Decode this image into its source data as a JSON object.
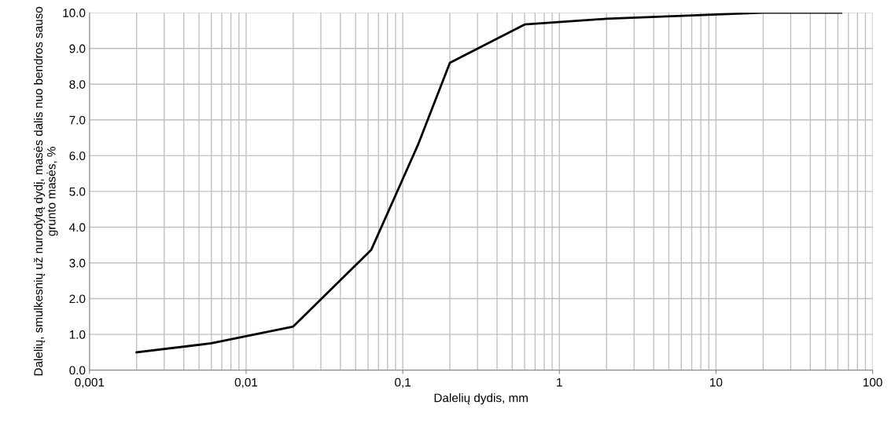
{
  "chart_data": {
    "type": "line",
    "xlabel": "Dalelių dydis, mm",
    "ylabel": "Dalelių, smulkesnių už nurodytą dydį, masės dalis nuo bendros sauso grunto masės, %",
    "log": "x",
    "grid": true,
    "marker": "none",
    "line_style": "solid",
    "x": [
      0.002,
      0.006,
      0.02,
      0.063,
      0.125,
      0.2,
      0.6,
      2,
      20,
      63
    ],
    "series": [
      {
        "color": "#000000",
        "values": [
          0.5,
          0.75,
          1.22,
          3.37,
          6.3,
          8.6,
          9.67,
          9.83,
          10.0,
          10.0
        ]
      }
    ],
    "xlim": [
      0.001,
      100
    ],
    "xticks": [
      {
        "value": 0.001,
        "label": "0,001"
      },
      {
        "value": 0.01,
        "label": "0,01"
      },
      {
        "value": 0.1,
        "label": "0,1"
      },
      1,
      10,
      100
    ],
    "ylim": [
      0,
      10
    ],
    "yticks": [
      {
        "value": 0,
        "label": "0.0"
      },
      {
        "value": 1,
        "label": "1.0"
      },
      {
        "value": 2,
        "label": "2.0"
      },
      {
        "value": 3,
        "label": "3.0"
      },
      {
        "value": 4,
        "label": "4.0"
      },
      {
        "value": 5,
        "label": "5.0"
      },
      {
        "value": 6,
        "label": "6.0"
      },
      {
        "value": 7,
        "label": "7.0"
      },
      {
        "value": 8,
        "label": "8.0"
      },
      {
        "value": 9,
        "label": "9.0"
      },
      {
        "value": 10,
        "label": "10.0"
      }
    ]
  }
}
